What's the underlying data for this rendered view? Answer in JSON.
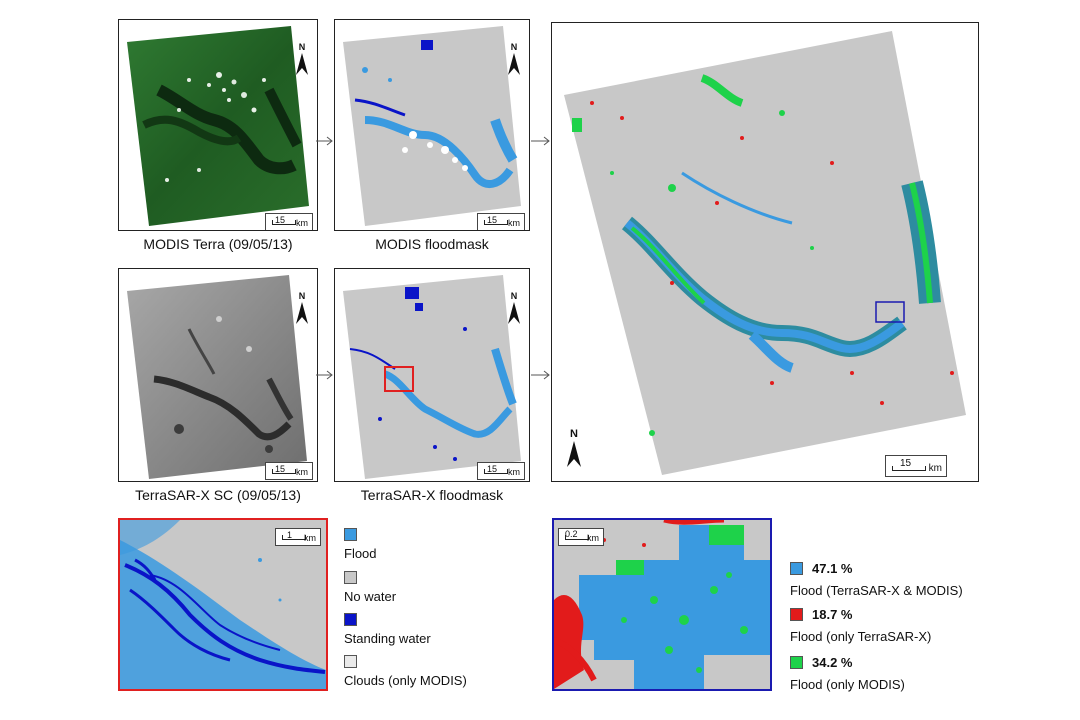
{
  "captions": {
    "modis_terra": "MODIS Terra (09/05/13)",
    "modis_floodmask": "MODIS floodmask",
    "tsx_sc": "TerraSAR-X SC (09/05/13)",
    "tsx_floodmask": "TerraSAR-X floodmask"
  },
  "north_label": "N",
  "scale": {
    "small": {
      "value": "15",
      "unit": "km"
    },
    "large": {
      "value": "15",
      "unit": "km"
    },
    "zoom_red": {
      "value": "1",
      "unit": "km"
    },
    "zoom_blue": {
      "value": "0.2",
      "unit": "km"
    }
  },
  "legend_left": [
    {
      "label": "Flood",
      "color": "#3a9ae0"
    },
    {
      "label": "No water",
      "color": "#c8c8c8"
    },
    {
      "label": "Standing water",
      "color": "#0a14c8"
    },
    {
      "label": "Clouds (only MODIS)",
      "color": "#eaeaea"
    }
  ],
  "legend_right": [
    {
      "percent": "47.1 %",
      "label": "Flood (TerraSAR-X & MODIS)",
      "color": "#3a9ae0"
    },
    {
      "percent": "18.7 %",
      "label": "Flood (only TerraSAR-X)",
      "color": "#e21b1b"
    },
    {
      "percent": "34.2 %",
      "label": "Flood (only MODIS)",
      "color": "#1ed24a"
    }
  ],
  "colors": {
    "no_water": "#c8c8c8",
    "flood": "#3a9ae0",
    "standing_water": "#0a14c8",
    "tsx_only": "#e21b1b",
    "modis_only": "#1ed24a",
    "highlight_red": "#e02020",
    "highlight_blue": "#1a1ab0"
  }
}
